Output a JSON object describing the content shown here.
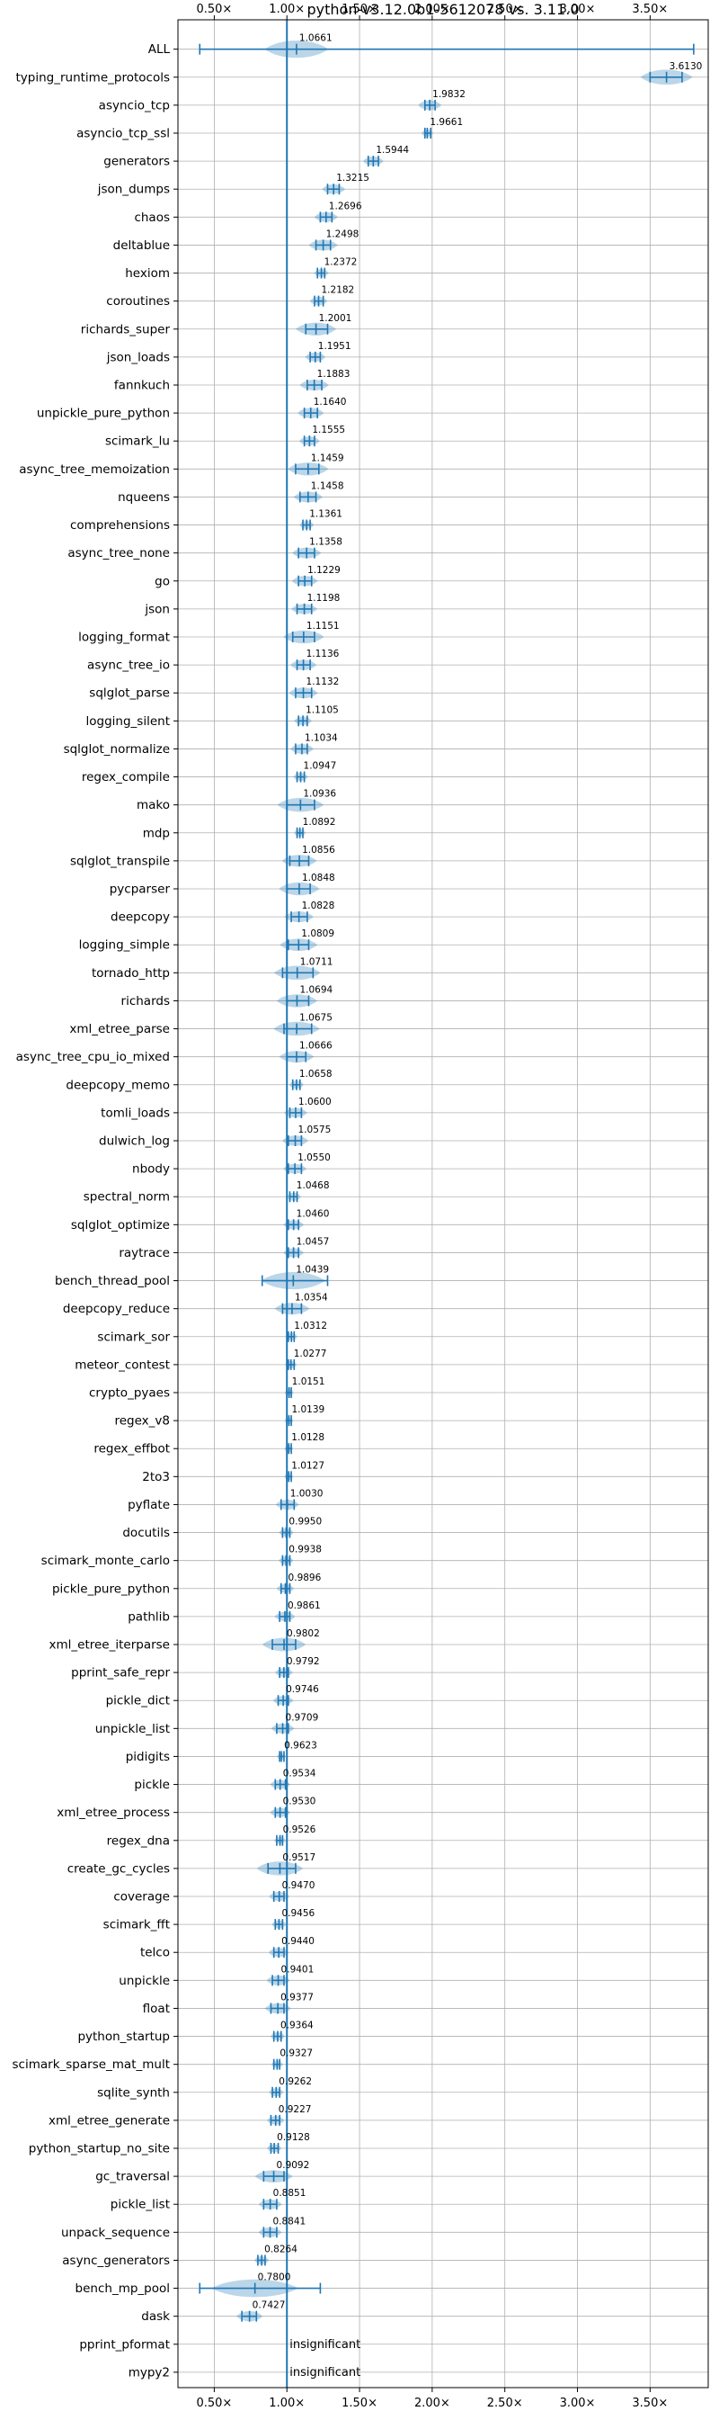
{
  "chart_data": {
    "type": "violin",
    "title": "python-v3.12.0b1-5612078 vs. 3.11.0",
    "xlim": [
      0.25,
      3.9
    ],
    "xticks": [
      0.5,
      1.0,
      1.5,
      2.0,
      2.5,
      3.0,
      3.5
    ],
    "xtick_labels": [
      "0.50×",
      "1.00×",
      "1.50×",
      "2.00×",
      "2.50×",
      "3.00×",
      "3.50×"
    ],
    "reference": 1.0,
    "insignificant_label": "insignificant",
    "benchmarks": [
      {
        "name": "ALL",
        "label": "1.0661",
        "value": 1.0661,
        "min": 0.4,
        "max": 3.8,
        "spread": 0.22
      },
      {
        "name": "typing_runtime_protocols",
        "label": "3.6130",
        "value": 3.613,
        "min": 3.5,
        "max": 3.72,
        "spread": 0.18
      },
      {
        "name": "asyncio_tcp",
        "label": "1.9832",
        "value": 1.9832,
        "min": 1.95,
        "max": 2.02,
        "spread": 0.08
      },
      {
        "name": "asyncio_tcp_ssl",
        "label": "1.9661",
        "value": 1.9661,
        "min": 1.95,
        "max": 1.99,
        "spread": 0.04
      },
      {
        "name": "generators",
        "label": "1.5944",
        "value": 1.5944,
        "min": 1.56,
        "max": 1.63,
        "spread": 0.07
      },
      {
        "name": "json_dumps",
        "label": "1.3215",
        "value": 1.3215,
        "min": 1.28,
        "max": 1.36,
        "spread": 0.08
      },
      {
        "name": "chaos",
        "label": "1.2696",
        "value": 1.2696,
        "min": 1.23,
        "max": 1.31,
        "spread": 0.08
      },
      {
        "name": "deltablue",
        "label": "1.2498",
        "value": 1.2498,
        "min": 1.2,
        "max": 1.3,
        "spread": 0.1
      },
      {
        "name": "hexiom",
        "label": "1.2372",
        "value": 1.2372,
        "min": 1.21,
        "max": 1.26,
        "spread": 0.05
      },
      {
        "name": "coroutines",
        "label": "1.2182",
        "value": 1.2182,
        "min": 1.19,
        "max": 1.25,
        "spread": 0.06
      },
      {
        "name": "richards_super",
        "label": "1.2001",
        "value": 1.2001,
        "min": 1.13,
        "max": 1.28,
        "spread": 0.14
      },
      {
        "name": "json_loads",
        "label": "1.1951",
        "value": 1.1951,
        "min": 1.16,
        "max": 1.23,
        "spread": 0.07
      },
      {
        "name": "fannkuch",
        "label": "1.1883",
        "value": 1.1883,
        "min": 1.14,
        "max": 1.24,
        "spread": 0.1
      },
      {
        "name": "unpickle_pure_python",
        "label": "1.1640",
        "value": 1.164,
        "min": 1.12,
        "max": 1.21,
        "spread": 0.09
      },
      {
        "name": "scimark_lu",
        "label": "1.1555",
        "value": 1.1555,
        "min": 1.12,
        "max": 1.19,
        "spread": 0.07
      },
      {
        "name": "async_tree_memoization",
        "label": "1.1459",
        "value": 1.1459,
        "min": 1.06,
        "max": 1.22,
        "spread": 0.14
      },
      {
        "name": "nqueens",
        "label": "1.1458",
        "value": 1.1458,
        "min": 1.09,
        "max": 1.2,
        "spread": 0.1
      },
      {
        "name": "comprehensions",
        "label": "1.1361",
        "value": 1.1361,
        "min": 1.11,
        "max": 1.16,
        "spread": 0.05
      },
      {
        "name": "async_tree_none",
        "label": "1.1358",
        "value": 1.1358,
        "min": 1.08,
        "max": 1.19,
        "spread": 0.1
      },
      {
        "name": "go",
        "label": "1.1229",
        "value": 1.1229,
        "min": 1.08,
        "max": 1.17,
        "spread": 0.09
      },
      {
        "name": "json",
        "label": "1.1198",
        "value": 1.1198,
        "min": 1.07,
        "max": 1.17,
        "spread": 0.09
      },
      {
        "name": "logging_format",
        "label": "1.1151",
        "value": 1.1151,
        "min": 1.04,
        "max": 1.19,
        "spread": 0.14
      },
      {
        "name": "async_tree_io",
        "label": "1.1136",
        "value": 1.1136,
        "min": 1.07,
        "max": 1.16,
        "spread": 0.09
      },
      {
        "name": "sqlglot_parse",
        "label": "1.1132",
        "value": 1.1132,
        "min": 1.06,
        "max": 1.17,
        "spread": 0.1
      },
      {
        "name": "logging_silent",
        "label": "1.1105",
        "value": 1.1105,
        "min": 1.08,
        "max": 1.14,
        "spread": 0.06
      },
      {
        "name": "sqlglot_normalize",
        "label": "1.1034",
        "value": 1.1034,
        "min": 1.06,
        "max": 1.14,
        "spread": 0.08
      },
      {
        "name": "regex_compile",
        "label": "1.0947",
        "value": 1.0947,
        "min": 1.07,
        "max": 1.12,
        "spread": 0.05
      },
      {
        "name": "mako",
        "label": "1.0936",
        "value": 1.0936,
        "min": 1.0,
        "max": 1.19,
        "spread": 0.16
      },
      {
        "name": "mdp",
        "label": "1.0892",
        "value": 1.0892,
        "min": 1.07,
        "max": 1.11,
        "spread": 0.04
      },
      {
        "name": "sqlglot_transpile",
        "label": "1.0856",
        "value": 1.0856,
        "min": 1.02,
        "max": 1.15,
        "spread": 0.12
      },
      {
        "name": "pycparser",
        "label": "1.0848",
        "value": 1.0848,
        "min": 1.0,
        "max": 1.16,
        "spread": 0.14
      },
      {
        "name": "deepcopy",
        "label": "1.0828",
        "value": 1.0828,
        "min": 1.03,
        "max": 1.14,
        "spread": 0.1
      },
      {
        "name": "logging_simple",
        "label": "1.0809",
        "value": 1.0809,
        "min": 1.01,
        "max": 1.15,
        "spread": 0.13
      },
      {
        "name": "tornado_http",
        "label": "1.0711",
        "value": 1.0711,
        "min": 0.97,
        "max": 1.18,
        "spread": 0.16
      },
      {
        "name": "richards",
        "label": "1.0694",
        "value": 1.0694,
        "min": 1.0,
        "max": 1.15,
        "spread": 0.14
      },
      {
        "name": "xml_etree_parse",
        "label": "1.0675",
        "value": 1.0675,
        "min": 0.98,
        "max": 1.17,
        "spread": 0.16
      },
      {
        "name": "async_tree_cpu_io_mixed",
        "label": "1.0666",
        "value": 1.0666,
        "min": 1.0,
        "max": 1.13,
        "spread": 0.12
      },
      {
        "name": "deepcopy_memo",
        "label": "1.0658",
        "value": 1.0658,
        "min": 1.04,
        "max": 1.09,
        "spread": 0.05
      },
      {
        "name": "tomli_loads",
        "label": "1.0600",
        "value": 1.06,
        "min": 1.02,
        "max": 1.1,
        "spread": 0.08
      },
      {
        "name": "dulwich_log",
        "label": "1.0575",
        "value": 1.0575,
        "min": 1.01,
        "max": 1.1,
        "spread": 0.09
      },
      {
        "name": "nbody",
        "label": "1.0550",
        "value": 1.055,
        "min": 1.01,
        "max": 1.1,
        "spread": 0.08
      },
      {
        "name": "spectral_norm",
        "label": "1.0468",
        "value": 1.0468,
        "min": 1.02,
        "max": 1.07,
        "spread": 0.05
      },
      {
        "name": "sqlglot_optimize",
        "label": "1.0460",
        "value": 1.046,
        "min": 1.01,
        "max": 1.08,
        "spread": 0.07
      },
      {
        "name": "raytrace",
        "label": "1.0457",
        "value": 1.0457,
        "min": 1.01,
        "max": 1.08,
        "spread": 0.07
      },
      {
        "name": "bench_thread_pool",
        "label": "1.0439",
        "value": 1.0439,
        "min": 0.83,
        "max": 1.28,
        "spread": 0.22
      },
      {
        "name": "deepcopy_reduce",
        "label": "1.0354",
        "value": 1.0354,
        "min": 0.97,
        "max": 1.1,
        "spread": 0.12
      },
      {
        "name": "scimark_sor",
        "label": "1.0312",
        "value": 1.0312,
        "min": 1.01,
        "max": 1.05,
        "spread": 0.04
      },
      {
        "name": "meteor_contest",
        "label": "1.0277",
        "value": 1.0277,
        "min": 1.01,
        "max": 1.05,
        "spread": 0.04
      },
      {
        "name": "crypto_pyaes",
        "label": "1.0151",
        "value": 1.0151,
        "min": 1.0,
        "max": 1.03,
        "spread": 0.03
      },
      {
        "name": "regex_v8",
        "label": "1.0139",
        "value": 1.0139,
        "min": 1.0,
        "max": 1.03,
        "spread": 0.03
      },
      {
        "name": "regex_effbot",
        "label": "1.0128",
        "value": 1.0128,
        "min": 1.0,
        "max": 1.03,
        "spread": 0.03
      },
      {
        "name": "2to3",
        "label": "1.0127",
        "value": 1.0127,
        "min": 1.0,
        "max": 1.03,
        "spread": 0.03
      },
      {
        "name": "pyflate",
        "label": "1.0030",
        "value": 1.003,
        "min": 0.96,
        "max": 1.05,
        "spread": 0.08
      },
      {
        "name": "docutils",
        "label": "0.9950",
        "value": 0.995,
        "min": 0.97,
        "max": 1.02,
        "spread": 0.05
      },
      {
        "name": "scimark_monte_carlo",
        "label": "0.9938",
        "value": 0.9938,
        "min": 0.97,
        "max": 1.02,
        "spread": 0.05
      },
      {
        "name": "pickle_pure_python",
        "label": "0.9896",
        "value": 0.9896,
        "min": 0.96,
        "max": 1.02,
        "spread": 0.06
      },
      {
        "name": "pathlib",
        "label": "0.9861",
        "value": 0.9861,
        "min": 0.95,
        "max": 1.02,
        "spread": 0.07
      },
      {
        "name": "xml_etree_iterparse",
        "label": "0.9802",
        "value": 0.9802,
        "min": 0.9,
        "max": 1.06,
        "spread": 0.15
      },
      {
        "name": "pprint_safe_repr",
        "label": "0.9792",
        "value": 0.9792,
        "min": 0.95,
        "max": 1.01,
        "spread": 0.06
      },
      {
        "name": "pickle_dict",
        "label": "0.9746",
        "value": 0.9746,
        "min": 0.94,
        "max": 1.01,
        "spread": 0.07
      },
      {
        "name": "unpickle_list",
        "label": "0.9709",
        "value": 0.9709,
        "min": 0.93,
        "max": 1.01,
        "spread": 0.08
      },
      {
        "name": "pidigits",
        "label": "0.9623",
        "value": 0.9623,
        "min": 0.95,
        "max": 0.98,
        "spread": 0.03
      },
      {
        "name": "pickle",
        "label": "0.9534",
        "value": 0.9534,
        "min": 0.92,
        "max": 0.99,
        "spread": 0.07
      },
      {
        "name": "xml_etree_process",
        "label": "0.9530",
        "value": 0.953,
        "min": 0.92,
        "max": 0.99,
        "spread": 0.07
      },
      {
        "name": "regex_dna",
        "label": "0.9526",
        "value": 0.9526,
        "min": 0.93,
        "max": 0.97,
        "spread": 0.04
      },
      {
        "name": "create_gc_cycles",
        "label": "0.9517",
        "value": 0.9517,
        "min": 0.87,
        "max": 1.06,
        "spread": 0.16
      },
      {
        "name": "coverage",
        "label": "0.9470",
        "value": 0.947,
        "min": 0.91,
        "max": 0.98,
        "spread": 0.07
      },
      {
        "name": "scimark_fft",
        "label": "0.9456",
        "value": 0.9456,
        "min": 0.92,
        "max": 0.97,
        "spread": 0.05
      },
      {
        "name": "telco",
        "label": "0.9440",
        "value": 0.944,
        "min": 0.91,
        "max": 0.98,
        "spread": 0.07
      },
      {
        "name": "unpickle",
        "label": "0.9401",
        "value": 0.9401,
        "min": 0.9,
        "max": 0.98,
        "spread": 0.08
      },
      {
        "name": "float",
        "label": "0.9377",
        "value": 0.9377,
        "min": 0.89,
        "max": 0.98,
        "spread": 0.09
      },
      {
        "name": "python_startup",
        "label": "0.9364",
        "value": 0.9364,
        "min": 0.91,
        "max": 0.96,
        "spread": 0.05
      },
      {
        "name": "scimark_sparse_mat_mult",
        "label": "0.9327",
        "value": 0.9327,
        "min": 0.91,
        "max": 0.95,
        "spread": 0.04
      },
      {
        "name": "sqlite_synth",
        "label": "0.9262",
        "value": 0.9262,
        "min": 0.9,
        "max": 0.95,
        "spread": 0.05
      },
      {
        "name": "xml_etree_generate",
        "label": "0.9227",
        "value": 0.9227,
        "min": 0.89,
        "max": 0.95,
        "spread": 0.06
      },
      {
        "name": "python_startup_no_site",
        "label": "0.9128",
        "value": 0.9128,
        "min": 0.89,
        "max": 0.94,
        "spread": 0.05
      },
      {
        "name": "gc_traversal",
        "label": "0.9092",
        "value": 0.9092,
        "min": 0.84,
        "max": 0.98,
        "spread": 0.13
      },
      {
        "name": "pickle_list",
        "label": "0.8851",
        "value": 0.8851,
        "min": 0.84,
        "max": 0.93,
        "spread": 0.08
      },
      {
        "name": "unpack_sequence",
        "label": "0.8841",
        "value": 0.8841,
        "min": 0.84,
        "max": 0.93,
        "spread": 0.08
      },
      {
        "name": "async_generators",
        "label": "0.8264",
        "value": 0.8264,
        "min": 0.8,
        "max": 0.85,
        "spread": 0.05
      },
      {
        "name": "bench_mp_pool",
        "label": "0.7800",
        "value": 0.78,
        "min": 0.4,
        "max": 1.23,
        "spread": 0.3
      },
      {
        "name": "dask",
        "label": "0.7427",
        "value": 0.7427,
        "min": 0.69,
        "max": 0.79,
        "spread": 0.09
      },
      {
        "name": "pprint_pformat",
        "label": "insignificant",
        "value": null
      },
      {
        "name": "mypy2",
        "label": "insignificant",
        "value": null
      }
    ]
  }
}
